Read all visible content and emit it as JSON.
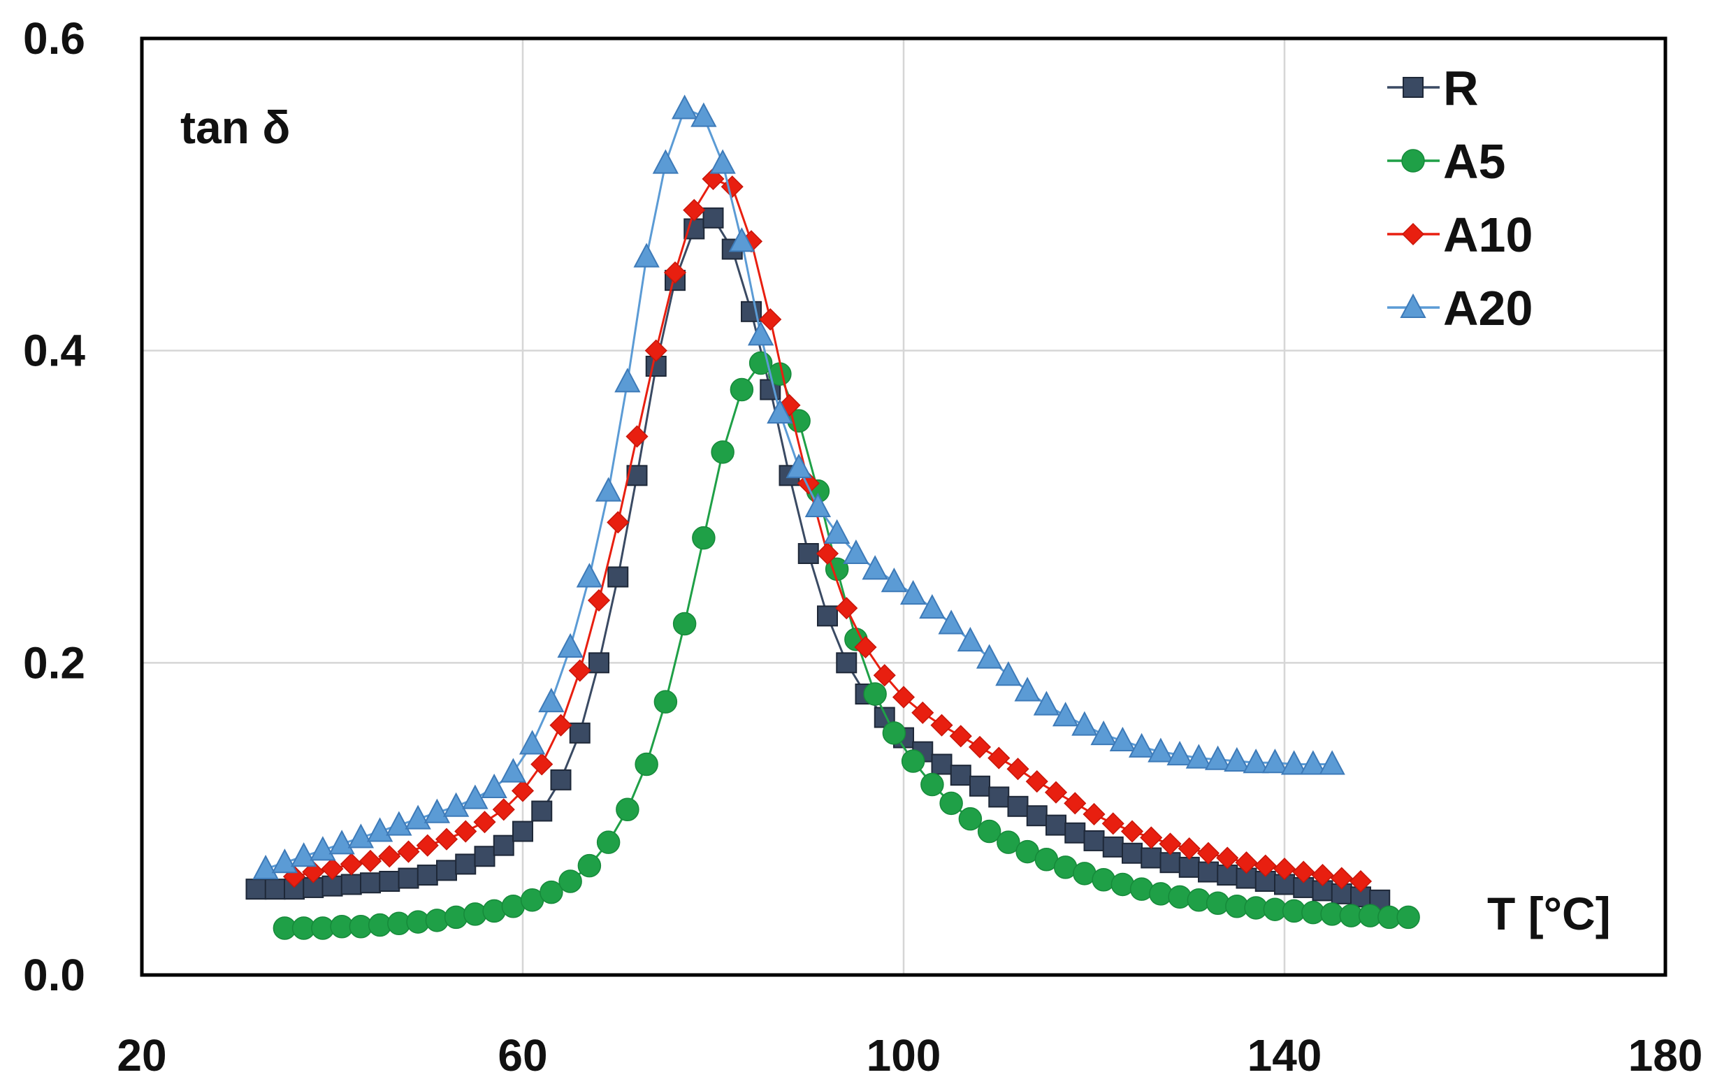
{
  "chart_data": {
    "type": "line",
    "title": "",
    "ylabel": "tan δ",
    "xlabel": "T [°C]",
    "xlim": [
      20,
      180
    ],
    "ylim": [
      0.0,
      0.6
    ],
    "xticks": [
      20,
      60,
      100,
      140,
      180
    ],
    "xtick_labels": [
      "20",
      "60",
      "100",
      "140",
      "180"
    ],
    "yticks": [
      0.0,
      0.2,
      0.4,
      0.6
    ],
    "ytick_labels": [
      "0.0",
      "0.2",
      "0.4",
      "0.6"
    ],
    "grid": true,
    "legend_position": "top-right",
    "series": [
      {
        "name": "R",
        "color": "#3a4a63",
        "marker": "square",
        "x": [
          32,
          34,
          36,
          38,
          40,
          42,
          44,
          46,
          48,
          50,
          52,
          54,
          56,
          58,
          60,
          62,
          64,
          66,
          68,
          70,
          72,
          74,
          76,
          78,
          80,
          82,
          84,
          86,
          88,
          90,
          92,
          94,
          96,
          98,
          100,
          102,
          104,
          106,
          108,
          110,
          112,
          114,
          116,
          118,
          120,
          122,
          124,
          126,
          128,
          130,
          132,
          134,
          136,
          138,
          140,
          142,
          144,
          146,
          148,
          150
        ],
        "values": [
          0.055,
          0.055,
          0.055,
          0.056,
          0.057,
          0.058,
          0.059,
          0.06,
          0.062,
          0.064,
          0.067,
          0.071,
          0.076,
          0.083,
          0.092,
          0.105,
          0.125,
          0.155,
          0.2,
          0.255,
          0.32,
          0.39,
          0.445,
          0.478,
          0.485,
          0.465,
          0.425,
          0.375,
          0.32,
          0.27,
          0.23,
          0.2,
          0.18,
          0.165,
          0.152,
          0.143,
          0.135,
          0.128,
          0.121,
          0.114,
          0.108,
          0.102,
          0.096,
          0.091,
          0.086,
          0.082,
          0.078,
          0.075,
          0.072,
          0.069,
          0.066,
          0.064,
          0.062,
          0.06,
          0.058,
          0.056,
          0.054,
          0.052,
          0.05,
          0.048
        ]
      },
      {
        "name": "A5",
        "color": "#1fa047",
        "marker": "circle",
        "x": [
          35,
          37,
          39,
          41,
          43,
          45,
          47,
          49,
          51,
          53,
          55,
          57,
          59,
          61,
          63,
          65,
          67,
          69,
          71,
          73,
          75,
          77,
          79,
          81,
          83,
          85,
          87,
          89,
          91,
          93,
          95,
          97,
          99,
          101,
          103,
          105,
          107,
          109,
          111,
          113,
          115,
          117,
          119,
          121,
          123,
          125,
          127,
          129,
          131,
          133,
          135,
          137,
          139,
          141,
          143,
          145,
          147,
          149,
          151,
          153
        ],
        "values": [
          0.03,
          0.03,
          0.03,
          0.031,
          0.031,
          0.032,
          0.033,
          0.034,
          0.035,
          0.037,
          0.039,
          0.041,
          0.044,
          0.048,
          0.053,
          0.06,
          0.07,
          0.085,
          0.106,
          0.135,
          0.175,
          0.225,
          0.28,
          0.335,
          0.375,
          0.392,
          0.385,
          0.355,
          0.31,
          0.26,
          0.215,
          0.18,
          0.155,
          0.137,
          0.122,
          0.11,
          0.1,
          0.092,
          0.085,
          0.079,
          0.074,
          0.069,
          0.065,
          0.061,
          0.058,
          0.055,
          0.052,
          0.05,
          0.048,
          0.046,
          0.044,
          0.043,
          0.042,
          0.041,
          0.04,
          0.039,
          0.038,
          0.038,
          0.037,
          0.037
        ]
      },
      {
        "name": "A10",
        "color": "#e81f10",
        "marker": "diamond",
        "x": [
          36,
          38,
          40,
          42,
          44,
          46,
          48,
          50,
          52,
          54,
          56,
          58,
          60,
          62,
          64,
          66,
          68,
          70,
          72,
          74,
          76,
          78,
          80,
          82,
          84,
          86,
          88,
          90,
          92,
          94,
          96,
          98,
          100,
          102,
          104,
          106,
          108,
          110,
          112,
          114,
          116,
          118,
          120,
          122,
          124,
          126,
          128,
          130,
          132,
          134,
          136,
          138,
          140,
          142,
          144,
          146,
          148
        ],
        "values": [
          0.063,
          0.066,
          0.068,
          0.071,
          0.073,
          0.076,
          0.079,
          0.083,
          0.087,
          0.092,
          0.098,
          0.106,
          0.118,
          0.135,
          0.16,
          0.195,
          0.24,
          0.29,
          0.345,
          0.4,
          0.45,
          0.49,
          0.51,
          0.505,
          0.47,
          0.42,
          0.365,
          0.315,
          0.27,
          0.235,
          0.21,
          0.192,
          0.178,
          0.168,
          0.16,
          0.153,
          0.146,
          0.139,
          0.132,
          0.124,
          0.117,
          0.11,
          0.103,
          0.097,
          0.092,
          0.088,
          0.084,
          0.081,
          0.078,
          0.075,
          0.072,
          0.07,
          0.068,
          0.066,
          0.064,
          0.062,
          0.06
        ]
      },
      {
        "name": "A20",
        "color": "#5b9bd5",
        "marker": "triangle",
        "x": [
          33,
          35,
          37,
          39,
          41,
          43,
          45,
          47,
          49,
          51,
          53,
          55,
          57,
          59,
          61,
          63,
          65,
          67,
          69,
          71,
          73,
          75,
          77,
          79,
          81,
          83,
          85,
          87,
          89,
          91,
          93,
          95,
          97,
          99,
          101,
          103,
          105,
          107,
          109,
          111,
          113,
          115,
          117,
          119,
          121,
          123,
          125,
          127,
          129,
          131,
          133,
          135,
          137,
          139,
          141,
          143,
          145
        ],
        "values": [
          0.068,
          0.072,
          0.076,
          0.08,
          0.084,
          0.088,
          0.092,
          0.096,
          0.1,
          0.104,
          0.108,
          0.113,
          0.12,
          0.13,
          0.148,
          0.175,
          0.21,
          0.255,
          0.31,
          0.38,
          0.46,
          0.52,
          0.555,
          0.55,
          0.52,
          0.47,
          0.41,
          0.36,
          0.325,
          0.3,
          0.283,
          0.27,
          0.26,
          0.252,
          0.244,
          0.235,
          0.225,
          0.214,
          0.203,
          0.192,
          0.182,
          0.173,
          0.166,
          0.16,
          0.154,
          0.15,
          0.146,
          0.143,
          0.141,
          0.139,
          0.138,
          0.137,
          0.136,
          0.136,
          0.135,
          0.135,
          0.135
        ]
      }
    ]
  }
}
